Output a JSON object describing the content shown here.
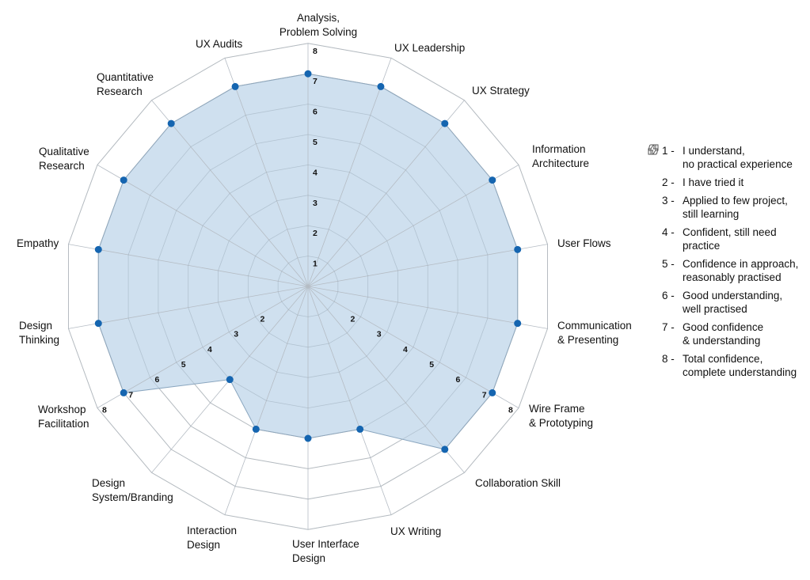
{
  "chart_data": {
    "type": "radar",
    "axes": [
      "Analysis,\nProblem Solving",
      "UX Leadership",
      "UX Strategy",
      "Information\nArchitecture",
      "User Flows",
      "Communication\n& Presenting",
      "Wire Frame\n& Prototyping",
      "Collaboration Skill",
      "UX Writing",
      "User Interface\nDesign",
      "Interaction\nDesign",
      "Design\nSystem/Branding",
      "Workshop\nFacilitation",
      "Design\nThinking",
      "Empathy",
      "Qualitative\nResearch",
      "Quantitative\nResearch",
      "UX Audits"
    ],
    "values": [
      7,
      7,
      7,
      7,
      7,
      7,
      7,
      7,
      5,
      5,
      5,
      4,
      7,
      7,
      7,
      7,
      7,
      7
    ],
    "range": [
      0,
      8
    ],
    "ticks": [
      1,
      2,
      3,
      4,
      5,
      6,
      7,
      8
    ],
    "fill_color": "#cfe0ef",
    "point_color": "#1565b0",
    "grid_color": "#cccccc"
  },
  "legend": [
    {
      "icon": "thumbs-down-icon",
      "num": "1 -",
      "text": "I understand,\nno practical experience"
    },
    {
      "icon": "",
      "num": "2 -",
      "text": "I have tried it"
    },
    {
      "icon": "",
      "num": "3 -",
      "text": "Applied to few project,\nstill learning"
    },
    {
      "icon": "",
      "num": "4 -",
      "text": "Confident, still need\npractice"
    },
    {
      "icon": "",
      "num": "5 -",
      "text": "Confidence in approach,\nreasonably practised"
    },
    {
      "icon": "",
      "num": "6 -",
      "text": "Good understanding,\nwell practised"
    },
    {
      "icon": "",
      "num": "7 -",
      "text": "Good confidence\n& understanding"
    },
    {
      "icon": "thumbs-up-icon",
      "num": "8 -",
      "text": "Total confidence,\ncomplete understanding"
    }
  ]
}
